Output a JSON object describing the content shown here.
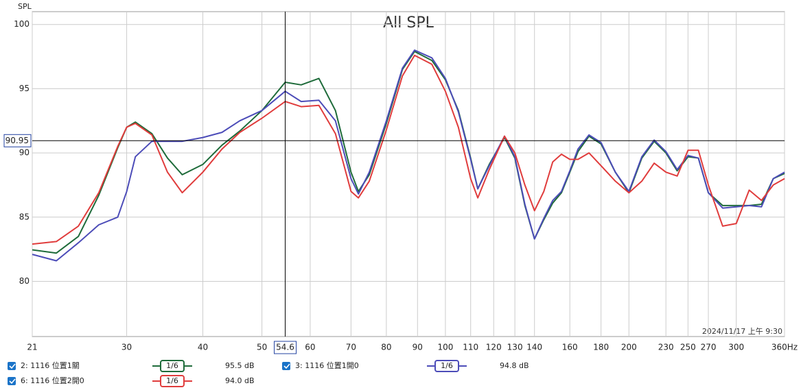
{
  "chart_data": {
    "type": "line",
    "title": "All SPL",
    "y_label": "SPL",
    "timestamp": "2024/11/17 上午 9:30",
    "log_x": true,
    "grid": true,
    "xlim": [
      21,
      360
    ],
    "ylim": [
      75.7,
      101
    ],
    "xticks": [
      21,
      30,
      40,
      50,
      60,
      70,
      80,
      90,
      100,
      200,
      300,
      {
        "value": 360,
        "label": "360Hz"
      }
    ],
    "xticks_light": [
      110,
      120,
      130,
      140,
      160,
      180,
      230,
      250,
      270
    ],
    "yticks": [
      80,
      85,
      90,
      95,
      100
    ],
    "cursor": {
      "x": 54.6,
      "y": 90.95
    },
    "x": [
      21,
      23,
      25,
      27,
      29,
      30,
      31,
      33,
      35,
      37,
      40,
      43,
      46,
      50,
      54.6,
      58,
      62,
      66,
      70,
      72,
      75,
      80,
      85,
      89,
      95,
      100,
      105,
      110,
      113,
      118,
      125,
      130,
      135,
      140,
      145,
      150,
      155,
      160,
      165,
      172,
      180,
      190,
      200,
      210,
      220,
      230,
      240,
      250,
      260,
      270,
      285,
      300,
      315,
      330,
      345,
      360
    ],
    "series": [
      {
        "name": "2: 1116 位置1關",
        "color": "#1e6b3a",
        "smoothing": "1/6",
        "legend_value": {
          "value": 95.5,
          "label": "95.5 dB"
        },
        "values": [
          82.45,
          82.2,
          83.5,
          86.7,
          90.4,
          92.0,
          92.4,
          91.5,
          89.6,
          88.3,
          89.1,
          90.6,
          91.7,
          93.3,
          95.5,
          95.3,
          95.8,
          93.3,
          88.5,
          87.0,
          88.3,
          92.3,
          96.5,
          97.9,
          97.2,
          95.7,
          93.3,
          89.6,
          87.2,
          89.1,
          91.2,
          89.6,
          85.9,
          83.3,
          84.8,
          86.1,
          86.9,
          88.5,
          90.1,
          91.3,
          90.7,
          88.5,
          86.9,
          89.6,
          90.9,
          90.0,
          88.6,
          89.7,
          89.6,
          86.9,
          85.9,
          85.9,
          85.9,
          86.0,
          88.0,
          88.4
        ]
      },
      {
        "name": "3: 1116 位置1開0",
        "color": "#4c4cb8",
        "smoothing": "1/6",
        "legend_value": {
          "value": 94.8,
          "label": "94.8 dB"
        },
        "values": [
          82.1,
          81.6,
          83.0,
          84.4,
          85.0,
          87.0,
          89.7,
          90.9,
          90.9,
          90.9,
          91.2,
          91.6,
          92.5,
          93.3,
          94.8,
          94.0,
          94.1,
          92.5,
          88.0,
          86.8,
          88.5,
          92.5,
          96.6,
          98.0,
          97.4,
          95.8,
          93.2,
          89.5,
          87.2,
          89.0,
          91.3,
          89.7,
          86.0,
          83.3,
          84.9,
          86.3,
          87.0,
          88.6,
          90.3,
          91.4,
          90.8,
          88.5,
          87.0,
          89.7,
          91.0,
          90.1,
          88.7,
          89.8,
          89.6,
          86.9,
          85.7,
          85.8,
          85.9,
          85.8,
          88.0,
          88.5
        ]
      },
      {
        "name": "6: 1116 位置2開0",
        "color": "#e03c3c",
        "smoothing": "1/6",
        "legend_value": {
          "value": 94.0,
          "label": "94.0 dB"
        },
        "values": [
          82.9,
          83.1,
          84.3,
          86.9,
          90.5,
          92.0,
          92.3,
          91.4,
          88.5,
          86.9,
          88.5,
          90.3,
          91.6,
          92.7,
          94.0,
          93.6,
          93.7,
          91.5,
          87.0,
          86.5,
          87.8,
          91.8,
          96.0,
          97.6,
          96.9,
          94.8,
          92.0,
          88.0,
          86.5,
          88.7,
          91.3,
          90.0,
          87.5,
          85.5,
          87.0,
          89.3,
          89.9,
          89.5,
          89.5,
          90.0,
          89.0,
          87.8,
          86.9,
          87.8,
          89.2,
          88.5,
          88.2,
          90.2,
          90.2,
          87.5,
          84.3,
          84.5,
          87.1,
          86.3,
          87.5,
          88.0
        ]
      }
    ]
  }
}
